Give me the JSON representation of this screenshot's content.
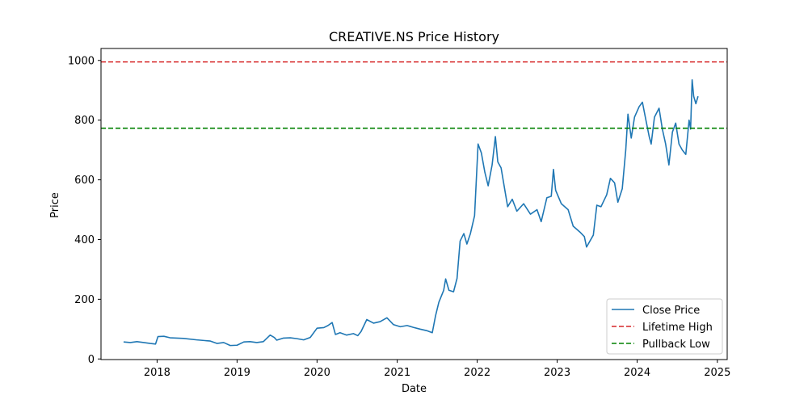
{
  "chart_data": {
    "type": "line",
    "title": "CREATIVE.NS Price History",
    "xlabel": "Date",
    "ylabel": "Price",
    "xlim": [
      "2017-04-20",
      "2025-02-15"
    ],
    "ylim": [
      -2,
      1040
    ],
    "x_ticks": [
      "2018",
      "2019",
      "2020",
      "2021",
      "2022",
      "2023",
      "2024",
      "2025"
    ],
    "y_ticks": [
      0,
      200,
      400,
      600,
      800,
      1000
    ],
    "grid": false,
    "legend_position": "bottom-right",
    "series": [
      {
        "name": "Close Price",
        "color": "#1f77b4",
        "points": [
          [
            "2017-08-01",
            57
          ],
          [
            "2017-09-01",
            55
          ],
          [
            "2017-10-01",
            58
          ],
          [
            "2017-11-01",
            55
          ],
          [
            "2017-12-01",
            52
          ],
          [
            "2017-12-25",
            50
          ],
          [
            "2018-01-05",
            75
          ],
          [
            "2018-02-01",
            76
          ],
          [
            "2018-03-01",
            71
          ],
          [
            "2018-05-01",
            69
          ],
          [
            "2018-07-01",
            64
          ],
          [
            "2018-09-01",
            60
          ],
          [
            "2018-10-01",
            52
          ],
          [
            "2018-11-01",
            55
          ],
          [
            "2018-12-01",
            45
          ],
          [
            "2019-01-01",
            46
          ],
          [
            "2019-02-01",
            57
          ],
          [
            "2019-03-01",
            58
          ],
          [
            "2019-04-01",
            55
          ],
          [
            "2019-05-01",
            58
          ],
          [
            "2019-06-01",
            80
          ],
          [
            "2019-06-20",
            72
          ],
          [
            "2019-07-01",
            63
          ],
          [
            "2019-08-01",
            70
          ],
          [
            "2019-09-01",
            71
          ],
          [
            "2019-10-01",
            68
          ],
          [
            "2019-11-01",
            64
          ],
          [
            "2019-12-01",
            72
          ],
          [
            "2020-01-01",
            103
          ],
          [
            "2020-02-01",
            105
          ],
          [
            "2020-02-20",
            112
          ],
          [
            "2020-03-10",
            122
          ],
          [
            "2020-03-25",
            82
          ],
          [
            "2020-04-15",
            88
          ],
          [
            "2020-05-15",
            80
          ],
          [
            "2020-06-15",
            85
          ],
          [
            "2020-07-05",
            78
          ],
          [
            "2020-07-20",
            92
          ],
          [
            "2020-08-15",
            132
          ],
          [
            "2020-09-15",
            120
          ],
          [
            "2020-10-15",
            125
          ],
          [
            "2020-11-15",
            138
          ],
          [
            "2020-12-15",
            115
          ],
          [
            "2021-01-15",
            108
          ],
          [
            "2021-02-15",
            112
          ],
          [
            "2021-03-15",
            106
          ],
          [
            "2021-04-15",
            100
          ],
          [
            "2021-05-15",
            95
          ],
          [
            "2021-06-10",
            88
          ],
          [
            "2021-06-25",
            145
          ],
          [
            "2021-07-10",
            190
          ],
          [
            "2021-08-01",
            230
          ],
          [
            "2021-08-10",
            268
          ],
          [
            "2021-08-25",
            230
          ],
          [
            "2021-09-15",
            225
          ],
          [
            "2021-10-01",
            270
          ],
          [
            "2021-10-15",
            395
          ],
          [
            "2021-11-01",
            420
          ],
          [
            "2021-11-15",
            385
          ],
          [
            "2021-12-01",
            420
          ],
          [
            "2021-12-20",
            480
          ],
          [
            "2022-01-05",
            720
          ],
          [
            "2022-01-20",
            690
          ],
          [
            "2022-02-05",
            625
          ],
          [
            "2022-02-20",
            580
          ],
          [
            "2022-03-10",
            650
          ],
          [
            "2022-03-25",
            745
          ],
          [
            "2022-04-05",
            660
          ],
          [
            "2022-04-20",
            640
          ],
          [
            "2022-05-05",
            575
          ],
          [
            "2022-05-20",
            510
          ],
          [
            "2022-06-10",
            535
          ],
          [
            "2022-07-01",
            495
          ],
          [
            "2022-08-01",
            520
          ],
          [
            "2022-09-01",
            485
          ],
          [
            "2022-10-01",
            500
          ],
          [
            "2022-10-20",
            460
          ],
          [
            "2022-11-15",
            540
          ],
          [
            "2022-12-05",
            545
          ],
          [
            "2022-12-15",
            635
          ],
          [
            "2022-12-25",
            565
          ],
          [
            "2023-01-20",
            520
          ],
          [
            "2023-02-20",
            500
          ],
          [
            "2023-03-15",
            445
          ],
          [
            "2023-04-15",
            425
          ],
          [
            "2023-05-05",
            410
          ],
          [
            "2023-05-15",
            375
          ],
          [
            "2023-06-15",
            415
          ],
          [
            "2023-07-01",
            515
          ],
          [
            "2023-07-20",
            510
          ],
          [
            "2023-08-15",
            550
          ],
          [
            "2023-09-01",
            605
          ],
          [
            "2023-09-20",
            590
          ],
          [
            "2023-10-05",
            525
          ],
          [
            "2023-10-25",
            570
          ],
          [
            "2023-11-10",
            700
          ],
          [
            "2023-11-20",
            820
          ],
          [
            "2023-12-05",
            740
          ],
          [
            "2023-12-20",
            810
          ],
          [
            "2024-01-10",
            845
          ],
          [
            "2024-01-25",
            860
          ],
          [
            "2024-02-10",
            800
          ],
          [
            "2024-02-25",
            745
          ],
          [
            "2024-03-05",
            720
          ],
          [
            "2024-03-20",
            810
          ],
          [
            "2024-04-10",
            840
          ],
          [
            "2024-04-25",
            770
          ],
          [
            "2024-05-10",
            720
          ],
          [
            "2024-05-25",
            650
          ],
          [
            "2024-06-10",
            760
          ],
          [
            "2024-06-25",
            790
          ],
          [
            "2024-07-10",
            720
          ],
          [
            "2024-07-25",
            700
          ],
          [
            "2024-08-10",
            685
          ],
          [
            "2024-08-25",
            800
          ],
          [
            "2024-09-01",
            770
          ],
          [
            "2024-09-08",
            935
          ],
          [
            "2024-09-15",
            880
          ],
          [
            "2024-09-25",
            855
          ],
          [
            "2024-10-05",
            880
          ]
        ]
      },
      {
        "name": "Lifetime High",
        "color": "#d62728",
        "dashed": true,
        "y": 995
      },
      {
        "name": "Pullback Low",
        "color": "#008000",
        "dashed": true,
        "y": 773
      }
    ]
  }
}
